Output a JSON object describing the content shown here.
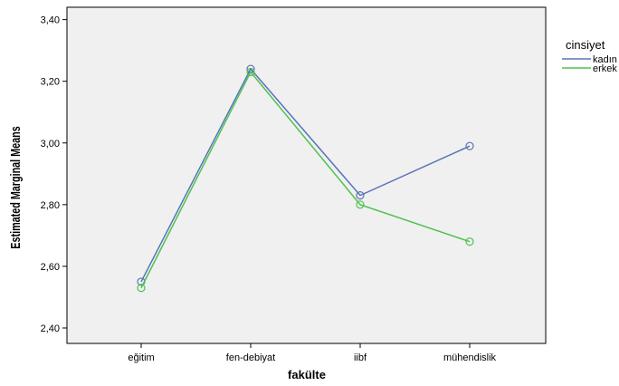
{
  "chart_data": {
    "type": "line",
    "xlabel": "fakülte",
    "ylabel": "Estimated Marginal Means",
    "categories": [
      "eğitim",
      "fen-debiyat",
      "iibf",
      "mühendislik"
    ],
    "y_ticks": [
      "2,40",
      "2,60",
      "2,80",
      "3,00",
      "3,20",
      "3,40"
    ],
    "ylim": [
      2.35,
      3.44
    ],
    "grid": false,
    "legend": {
      "title": "cinsiyet",
      "placement": "right"
    },
    "series": [
      {
        "name": "kadın",
        "color": "#5a73b8",
        "values": [
          2.55,
          3.24,
          2.83,
          2.99
        ]
      },
      {
        "name": "erkek",
        "color": "#4ec24e",
        "values": [
          2.53,
          3.23,
          2.8,
          2.68
        ]
      }
    ],
    "plot_background": "#f0f0f0"
  }
}
